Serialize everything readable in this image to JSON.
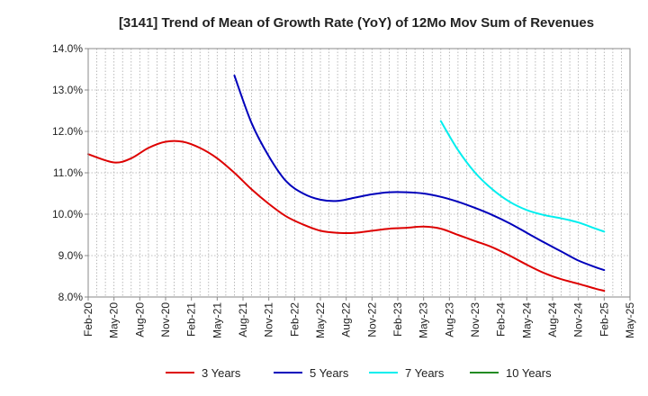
{
  "chart_data": {
    "type": "line",
    "title": "[3141]  Trend of Mean of Growth Rate (YoY) of 12Mo Mov Sum of Revenues",
    "xlabel": "",
    "ylabel": "",
    "ylim": [
      8.0,
      14.0
    ],
    "yticks": [
      8.0,
      9.0,
      10.0,
      11.0,
      12.0,
      13.0,
      14.0
    ],
    "ytick_labels": [
      "8.0%",
      "9.0%",
      "10.0%",
      "11.0%",
      "12.0%",
      "13.0%",
      "14.0%"
    ],
    "x_start": "Feb-20",
    "x_end": "May-25",
    "x_tick_labels": [
      "Feb-20",
      "May-20",
      "Aug-20",
      "Nov-20",
      "Feb-21",
      "May-21",
      "Aug-21",
      "Nov-21",
      "Feb-22",
      "May-22",
      "Aug-22",
      "Nov-22",
      "Feb-23",
      "May-23",
      "Aug-23",
      "Nov-23",
      "Feb-24",
      "May-24",
      "Aug-24",
      "Nov-24",
      "Feb-25",
      "May-25"
    ],
    "grid": true,
    "legend_position": "bottom",
    "series": [
      {
        "name": "3 Years",
        "color": "#dd0000",
        "x": [
          "Feb-20",
          "May-20",
          "Jul-20",
          "Sep-20",
          "Nov-20",
          "Jan-21",
          "Mar-21",
          "May-21",
          "Jul-21",
          "Sep-21",
          "Nov-21",
          "Jan-22",
          "Mar-22",
          "May-22",
          "Jul-22",
          "Sep-22",
          "Nov-22",
          "Jan-23",
          "Mar-23",
          "May-23",
          "Jul-23",
          "Sep-23",
          "Nov-23",
          "Jan-24",
          "Mar-24",
          "May-24",
          "Jul-24",
          "Sep-24",
          "Nov-24",
          "Jan-25",
          "Feb-25"
        ],
        "values": [
          11.45,
          11.25,
          11.35,
          11.6,
          11.75,
          11.75,
          11.6,
          11.35,
          11.0,
          10.6,
          10.25,
          9.95,
          9.75,
          9.6,
          9.55,
          9.55,
          9.6,
          9.65,
          9.67,
          9.7,
          9.65,
          9.5,
          9.35,
          9.2,
          9.0,
          8.78,
          8.58,
          8.43,
          8.32,
          8.2,
          8.15
        ]
      },
      {
        "name": "5 Years",
        "color": "#0000bb",
        "x": [
          "Jul-21",
          "Sep-21",
          "Nov-21",
          "Jan-22",
          "Mar-22",
          "May-22",
          "Jul-22",
          "Sep-22",
          "Nov-22",
          "Jan-23",
          "Mar-23",
          "May-23",
          "Jul-23",
          "Sep-23",
          "Nov-23",
          "Jan-24",
          "Mar-24",
          "May-24",
          "Jul-24",
          "Sep-24",
          "Nov-24",
          "Jan-25",
          "Feb-25"
        ],
        "values": [
          13.35,
          12.2,
          11.4,
          10.8,
          10.5,
          10.35,
          10.32,
          10.4,
          10.48,
          10.53,
          10.53,
          10.5,
          10.42,
          10.3,
          10.15,
          9.98,
          9.78,
          9.55,
          9.32,
          9.1,
          8.88,
          8.72,
          8.65
        ]
      },
      {
        "name": "7 Years",
        "color": "#00eeee",
        "x": [
          "Jul-23",
          "Sep-23",
          "Nov-23",
          "Jan-24",
          "Mar-24",
          "May-24",
          "Jul-24",
          "Sep-24",
          "Nov-24",
          "Jan-25",
          "Feb-25"
        ],
        "values": [
          12.25,
          11.55,
          11.0,
          10.6,
          10.3,
          10.1,
          9.98,
          9.9,
          9.8,
          9.65,
          9.58
        ]
      },
      {
        "name": "10 Years",
        "color": "#228b22",
        "x": [],
        "values": []
      }
    ]
  }
}
